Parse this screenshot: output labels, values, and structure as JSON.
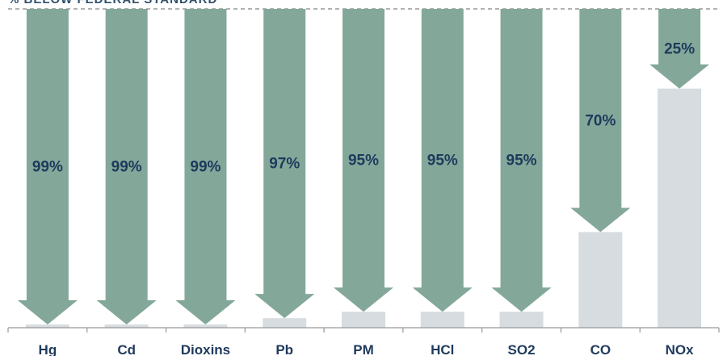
{
  "chart_data": {
    "type": "bar",
    "title": "% BELOW FEDERAL STANDARD",
    "categories": [
      "Hg",
      "Cd",
      "Dioxins",
      "Pb",
      "PM",
      "HCl",
      "SO2",
      "CO",
      "NOx"
    ],
    "series": [
      {
        "values": [
          99,
          99,
          99,
          97,
          95,
          95,
          95,
          70,
          25
        ]
      }
    ],
    "data_labels": [
      "99%",
      "99%",
      "99%",
      "97%",
      "95%",
      "95%",
      "95%",
      "70%",
      "25%"
    ],
    "ylim": [
      0,
      100
    ],
    "reference_line": "dashed line at 100% of federal standard",
    "colors": {
      "arrow": "#83a89a",
      "remaining": "#d6dce0",
      "label": "#1f3a5c",
      "axis": "#999999"
    }
  }
}
